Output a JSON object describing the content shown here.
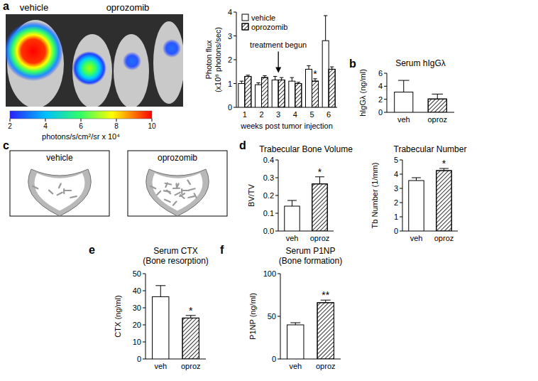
{
  "chart_data": [
    {
      "type": "image",
      "panel": "a",
      "labels": [
        "vehicle",
        "oprozomib"
      ],
      "colorbar_lim": [
        2,
        10
      ],
      "colorbar_ticks": [
        2,
        4,
        6,
        8,
        10
      ],
      "colorbar_label": "photons/s/cm²/sr x 10⁴"
    },
    {
      "type": "bar",
      "y_label": [
        "Photon flux",
        "(x10⁸ photons/sec)"
      ],
      "x_label": "weeks post tumor injection",
      "categories": [
        1,
        2,
        3,
        4,
        5,
        6
      ],
      "series": [
        {
          "name": "vehicle",
          "color": "#ffffff",
          "values": [
            1.0,
            0.95,
            1.15,
            1.1,
            1.6,
            2.8
          ],
          "errors": [
            0.1,
            0.08,
            0.15,
            0.15,
            0.15,
            1.05
          ]
        },
        {
          "name": "oprozomib",
          "color": "#ffffff",
          "values": [
            1.3,
            1.25,
            1.15,
            1.0,
            1.1,
            1.6
          ],
          "errors": [
            0.05,
            0.08,
            0.1,
            0.05,
            0.1,
            0.1
          ],
          "annotations": [
            null,
            null,
            null,
            null,
            "*",
            null
          ]
        }
      ],
      "ylim": [
        0,
        4
      ],
      "yticks": [
        0,
        1,
        2,
        3,
        4
      ],
      "legend": "upper left",
      "arrow_annotation": {
        "text": "treatment begun",
        "at": 3
      }
    },
    {
      "type": "bar",
      "panel": "b",
      "title": "Serum hIgGλ",
      "y_label": "hIgGλ (ng/ml)",
      "categories": [
        "veh",
        "oproz"
      ],
      "values": [
        3.1,
        2.05
      ],
      "errors": [
        1.8,
        0.75
      ],
      "colors": [
        "#ffffff",
        "#ffffff"
      ],
      "ylim": [
        0,
        6
      ],
      "yticks": [
        0,
        2,
        4,
        6
      ]
    },
    {
      "type": "image",
      "panel": "c",
      "labels": [
        "vehicle",
        "oprozomib"
      ]
    },
    {
      "type": "bar",
      "panel": "d",
      "title": "Trabecular Bone Volume",
      "y_label": "BV/TV",
      "categories": [
        "veh",
        "oproz"
      ],
      "values": [
        0.14,
        0.265
      ],
      "errors": [
        0.032,
        0.04
      ],
      "annotations": [
        null,
        "*"
      ],
      "colors": [
        "#ffffff",
        "#ffffff"
      ],
      "ylim": [
        0,
        0.4
      ],
      "yticks": [
        {
          "value": 0,
          "label": "0.0"
        },
        0.1,
        0.2,
        0.3,
        0.4
      ]
    },
    {
      "type": "bar",
      "title": "Trabecular Number",
      "y_label": "Tb Number (1/mm)",
      "categories": [
        "veh",
        "oproz"
      ],
      "values": [
        3.55,
        4.25
      ],
      "errors": [
        0.2,
        0.15
      ],
      "annotations": [
        null,
        "*"
      ],
      "colors": [
        "#ffffff",
        "#ffffff"
      ],
      "ylim": [
        0,
        5
      ],
      "yticks": [
        0,
        1,
        2,
        3,
        4,
        5
      ]
    },
    {
      "type": "bar",
      "panel": "e",
      "title": [
        "Serum CTX",
        "(Bone resorption)"
      ],
      "y_label": "CTX (ng/ml)",
      "categories": [
        "veh",
        "oproz"
      ],
      "values": [
        36.5,
        24
      ],
      "errors": [
        6.5,
        1.5
      ],
      "annotations": [
        null,
        "*"
      ],
      "colors": [
        "#ffffff",
        "#ffffff"
      ],
      "ylim": [
        0,
        50
      ],
      "yticks": [
        0,
        10,
        20,
        30,
        40,
        50
      ]
    },
    {
      "type": "bar",
      "panel": "f",
      "title": [
        "Serum P1NP",
        "(Bone formation)"
      ],
      "y_label": "P1NP (ng/ml)",
      "categories": [
        "veh",
        "oproz"
      ],
      "values": [
        40,
        66
      ],
      "errors": [
        2.5,
        3
      ],
      "annotations": [
        null,
        "**"
      ],
      "colors": [
        "#ffffff",
        "#ffffff"
      ],
      "ylim": [
        0,
        100
      ],
      "yticks": [
        0,
        50,
        100
      ]
    }
  ]
}
